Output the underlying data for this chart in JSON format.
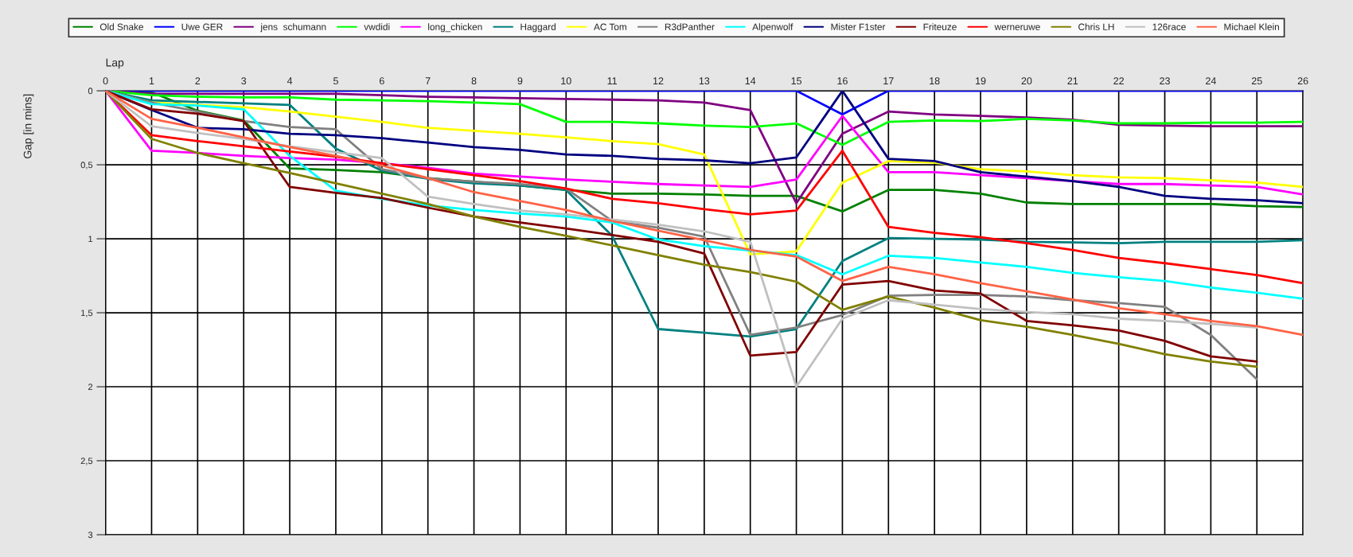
{
  "chart_data": {
    "type": "line",
    "xlabel": "Lap",
    "ylabel": "Gap [in mins]",
    "x": [
      0,
      1,
      2,
      3,
      4,
      5,
      6,
      7,
      8,
      9,
      10,
      11,
      12,
      13,
      14,
      15,
      16,
      17,
      18,
      19,
      20,
      21,
      22,
      23,
      24,
      25,
      26
    ],
    "xlim": [
      0,
      26
    ],
    "xticks": [
      0,
      1,
      2,
      3,
      4,
      5,
      6,
      7,
      8,
      9,
      10,
      11,
      12,
      13,
      14,
      15,
      16,
      17,
      18,
      19,
      20,
      21,
      22,
      23,
      24,
      25,
      26
    ],
    "ylim": [
      3,
      0
    ],
    "yticks": [
      0,
      {
        "value": 0.5,
        "label": "0,5"
      },
      1,
      {
        "value": 1.5,
        "label": "1,5"
      },
      2,
      {
        "value": 2.5,
        "label": "2,5"
      },
      3
    ],
    "grid": true,
    "legend": "top",
    "marker": "none",
    "line_style": "solid",
    "series": [
      {
        "name": "Old Snake",
        "color": "#008000",
        "values": [
          0,
          0.01,
          0.135,
          0.2,
          0.525,
          0.535,
          0.55,
          0.59,
          0.615,
          0.64,
          0.67,
          0.695,
          0.695,
          0.7,
          0.71,
          0.71,
          0.815,
          0.67,
          0.67,
          0.695,
          0.755,
          0.765,
          0.765,
          0.765,
          0.765,
          0.78,
          0.785
        ]
      },
      {
        "name": "Uwe GER",
        "color": "#0000ff",
        "values": [
          0,
          0,
          0,
          0,
          0,
          0,
          0,
          0,
          0,
          0,
          0,
          0,
          0,
          0,
          0,
          0,
          0.16,
          0,
          0,
          0,
          0,
          0,
          0,
          0,
          0,
          0,
          0
        ]
      },
      {
        "name": "jens  schumann",
        "color": "#800080",
        "values": [
          0,
          0.02,
          0.02,
          0.02,
          0.02,
          0.02,
          0.03,
          0.04,
          0.045,
          0.05,
          0.055,
          0.06,
          0.065,
          0.08,
          0.13,
          0.76,
          0.29,
          0.14,
          0.16,
          0.17,
          0.18,
          0.195,
          0.23,
          0.235,
          0.24,
          0.24,
          0.24
        ]
      },
      {
        "name": "vwdidi",
        "color": "#00ff00",
        "values": [
          0,
          0.03,
          0.04,
          0.045,
          0.045,
          0.06,
          0.065,
          0.07,
          0.08,
          0.09,
          0.21,
          0.21,
          0.22,
          0.235,
          0.245,
          0.22,
          0.365,
          0.21,
          0.2,
          0.205,
          0.19,
          0.2,
          0.22,
          0.22,
          0.215,
          0.215,
          0.21
        ]
      },
      {
        "name": "long_chicken",
        "color": "#ff00ff",
        "values": [
          0,
          0.405,
          0.42,
          0.44,
          0.455,
          0.465,
          0.49,
          0.52,
          0.56,
          0.58,
          0.6,
          0.615,
          0.63,
          0.64,
          0.65,
          0.6,
          0.17,
          0.55,
          0.55,
          0.57,
          0.59,
          0.61,
          0.63,
          0.63,
          0.64,
          0.65,
          0.7
        ]
      },
      {
        "name": "Haggard",
        "color": "#008080",
        "values": [
          0,
          0.065,
          0.075,
          0.085,
          0.095,
          0.39,
          0.54,
          0.595,
          0.625,
          0.64,
          0.67,
          0.98,
          1.61,
          1.635,
          1.66,
          1.61,
          1.15,
          0.995,
          1.0,
          1.005,
          1.02,
          1.025,
          1.03,
          1.02,
          1.02,
          1.02,
          1.01
        ]
      },
      {
        "name": "AC Tom",
        "color": "#ffff00",
        "values": [
          0,
          0.08,
          0.095,
          0.11,
          0.14,
          0.175,
          0.21,
          0.25,
          0.27,
          0.29,
          0.315,
          0.34,
          0.36,
          0.43,
          1.105,
          1.085,
          0.62,
          0.475,
          0.485,
          0.53,
          0.545,
          0.57,
          0.585,
          0.59,
          0.605,
          0.62,
          0.65
        ]
      },
      {
        "name": "R3dPanther",
        "color": "#808080",
        "values": [
          0,
          0.08,
          0.14,
          0.205,
          0.245,
          0.26,
          0.53,
          0.59,
          0.615,
          0.63,
          0.66,
          0.88,
          0.925,
          0.985,
          1.65,
          1.6,
          1.515,
          1.385,
          1.38,
          1.38,
          1.39,
          1.415,
          1.435,
          1.46,
          1.65,
          1.95,
          null
        ]
      },
      {
        "name": "Alpenwolf",
        "color": "#00ffff",
        "values": [
          0,
          0.09,
          0.1,
          0.125,
          0.44,
          0.675,
          0.73,
          0.775,
          0.805,
          0.83,
          0.85,
          0.89,
          1.005,
          1.05,
          1.08,
          1.11,
          1.24,
          1.115,
          1.13,
          1.16,
          1.19,
          1.23,
          1.26,
          1.285,
          1.33,
          1.365,
          1.405
        ]
      },
      {
        "name": "Mister F1ster",
        "color": "#000080",
        "values": [
          0,
          0.13,
          0.25,
          0.26,
          0.29,
          0.3,
          0.32,
          0.35,
          0.38,
          0.4,
          0.43,
          0.44,
          0.46,
          0.47,
          0.49,
          0.45,
          0,
          0.46,
          0.475,
          0.55,
          0.58,
          0.61,
          0.65,
          0.71,
          0.73,
          0.74,
          0.76
        ]
      },
      {
        "name": "Friteuze",
        "color": "#800000",
        "values": [
          0,
          0.125,
          0.155,
          0.205,
          0.65,
          0.69,
          0.725,
          0.79,
          0.85,
          0.89,
          0.93,
          0.975,
          1.02,
          1.1,
          1.79,
          1.765,
          1.31,
          1.285,
          1.35,
          1.37,
          1.555,
          1.585,
          1.62,
          1.69,
          1.795,
          1.83,
          null
        ]
      },
      {
        "name": "werneruwe",
        "color": "#ff0000",
        "values": [
          0,
          0.3,
          0.34,
          0.375,
          0.41,
          0.445,
          0.49,
          0.53,
          0.57,
          0.61,
          0.66,
          0.73,
          0.76,
          0.8,
          0.835,
          0.81,
          0.405,
          0.92,
          0.96,
          0.99,
          1.03,
          1.075,
          1.13,
          1.165,
          1.205,
          1.245,
          1.3
        ]
      },
      {
        "name": "Chris LH",
        "color": "#808000",
        "values": [
          0,
          0.325,
          0.42,
          0.49,
          0.555,
          0.625,
          0.695,
          0.765,
          0.85,
          0.92,
          0.98,
          1.045,
          1.11,
          1.175,
          1.225,
          1.29,
          1.48,
          1.39,
          1.465,
          1.55,
          1.595,
          1.65,
          1.71,
          1.78,
          1.83,
          1.865,
          null
        ]
      },
      {
        "name": "126race",
        "color": "#c0c0c0",
        "values": [
          0,
          0.24,
          0.285,
          0.325,
          0.375,
          0.415,
          0.455,
          0.715,
          0.765,
          0.81,
          0.835,
          0.87,
          0.905,
          0.95,
          1.02,
          2.0,
          1.54,
          1.415,
          1.445,
          1.475,
          1.495,
          1.51,
          1.54,
          1.555,
          1.575,
          1.6,
          null
        ]
      },
      {
        "name": "Michael Klein",
        "color": "#ff6347",
        "values": [
          0,
          0.19,
          0.25,
          0.315,
          0.38,
          0.44,
          0.505,
          0.59,
          0.685,
          0.745,
          0.805,
          0.88,
          0.945,
          1.01,
          1.075,
          1.12,
          1.285,
          1.19,
          1.24,
          1.3,
          1.355,
          1.41,
          1.47,
          1.51,
          1.555,
          1.59,
          1.65
        ]
      }
    ]
  }
}
